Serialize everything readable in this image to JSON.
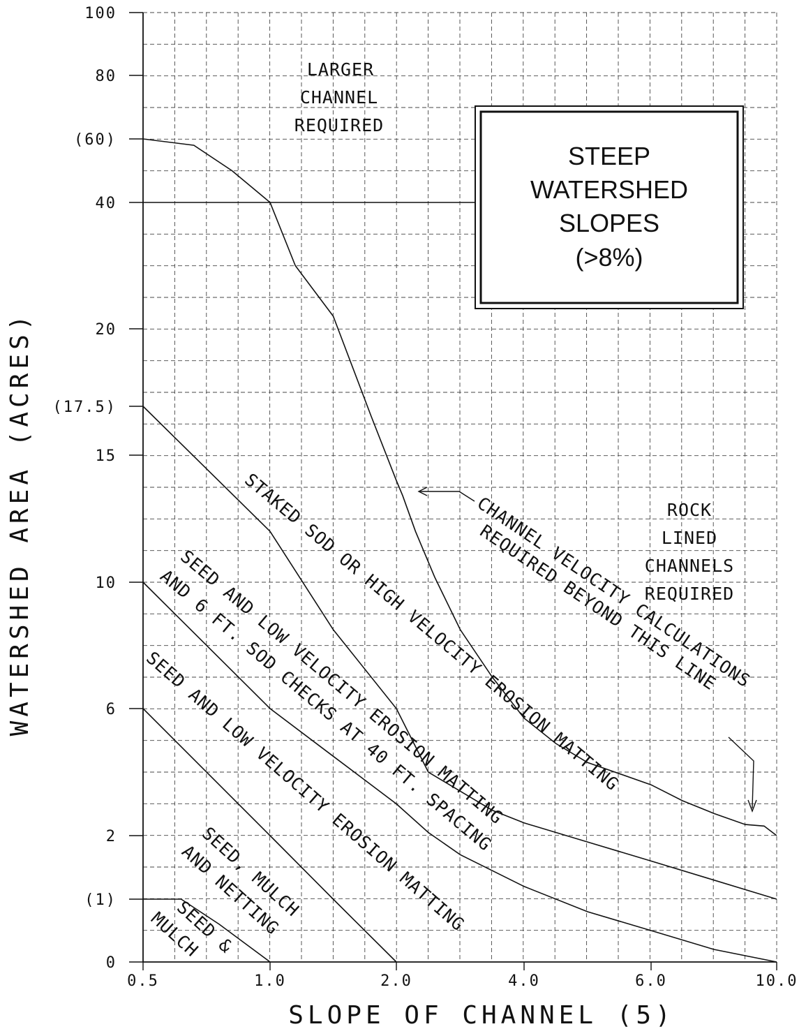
{
  "chart_data": {
    "type": "line",
    "title": "",
    "xlabel": "SLOPE OF CHANNEL (5)",
    "ylabel": "WATERSHED AREA (ACRES)",
    "xlim": [
      0.5,
      10.0
    ],
    "ylim": [
      0,
      100
    ],
    "grid": true,
    "x_ticks": [
      {
        "value": 0.5,
        "label": "0.5"
      },
      {
        "value": 1.0,
        "label": "1.0"
      },
      {
        "value": 2.0,
        "label": "2.0"
      },
      {
        "value": 4.0,
        "label": "4.0"
      },
      {
        "value": 6.0,
        "label": "6.0"
      },
      {
        "value": 10.0,
        "label": "10.0"
      }
    ],
    "y_ticks": [
      {
        "value": 0,
        "label": "0"
      },
      {
        "value": 1,
        "label": "(1)"
      },
      {
        "value": 2,
        "label": "2"
      },
      {
        "value": 6,
        "label": "6"
      },
      {
        "value": 10,
        "label": "10"
      },
      {
        "value": 15,
        "label": "15"
      },
      {
        "value": 17.5,
        "label": "(17.5)"
      },
      {
        "value": 20,
        "label": "20"
      },
      {
        "value": 40,
        "label": "40"
      },
      {
        "value": 60,
        "label": "(60)"
      },
      {
        "value": 80,
        "label": "80"
      },
      {
        "value": 100,
        "label": "100"
      }
    ],
    "info_box": [
      "STEEP",
      "WATERSHED",
      "SLOPES",
      "(>8%)"
    ],
    "series": [
      {
        "id": "seed-mulch-limit",
        "x": [
          0.5,
          0.65,
          0.8,
          0.9,
          1.0
        ],
        "y": [
          1,
          1,
          0.6,
          0.3,
          0
        ]
      },
      {
        "id": "seed-mulch-netting-limit",
        "x": [
          0.5,
          1.0,
          1.5,
          2.0
        ],
        "y": [
          6,
          2,
          1,
          0
        ]
      },
      {
        "id": "low-velocity-matting-limit",
        "x": [
          0.5,
          1.0,
          1.5,
          2.0,
          2.5,
          3.0,
          4.0,
          5.0,
          6.0,
          8.0,
          10.0
        ],
        "y": [
          10,
          6,
          4.5,
          3,
          2.1,
          1.7,
          1.2,
          0.8,
          0.5,
          0.2,
          0
        ]
      },
      {
        "id": "sod-checks-limit",
        "x": [
          0.5,
          1.0,
          1.5,
          2.0,
          2.5,
          3.0,
          3.5,
          4.0,
          5.0,
          6.0,
          8.0,
          10.0
        ],
        "y": [
          17.5,
          12,
          8.5,
          6,
          4,
          3.4,
          2.8,
          2.4,
          1.9,
          1.6,
          1.3,
          1.0
        ]
      },
      {
        "id": "channel-velocity-limit",
        "x": [
          0.5,
          0.7,
          0.85,
          1.0,
          1.2,
          1.5,
          1.8,
          2.0,
          2.1,
          2.3,
          2.6,
          3.0,
          3.5,
          4.0,
          4.5,
          5.0,
          6.0,
          7.0,
          8.0,
          9.0,
          9.6,
          10.0
        ],
        "y": [
          60,
          58,
          50,
          40,
          30,
          22,
          17,
          14,
          13.4,
          12,
          10.2,
          8.5,
          7.0,
          5.7,
          4.9,
          4.3,
          3.6,
          3.1,
          2.7,
          2.35,
          2.3,
          2.0
        ]
      }
    ],
    "reference_lines": [
      {
        "orientation": "horizontal",
        "y": 40,
        "x_from": 0.5,
        "x_to": 3.8
      }
    ],
    "annotations": [
      {
        "id": "larger-channel",
        "lines": [
          "LARGER",
          "CHANNEL",
          "REQUIRED"
        ]
      },
      {
        "id": "rock-lined",
        "lines": [
          "ROCK",
          "LINED",
          "CHANNELS",
          "REQUIRED"
        ]
      },
      {
        "id": "channel-velocity-note",
        "lines": [
          "CHANNEL VELOCITY CALCULATIONS",
          "REQUIRED BEYOND THIS LINE"
        ]
      },
      {
        "id": "staked-sod",
        "lines": [
          "STAKED SOD OR HIGH VELOCITY EROSION MATTING"
        ]
      },
      {
        "id": "sod-checks",
        "lines": [
          "SEED AND LOW VELOCITY EROSION MATTING",
          "AND 6 FT. SOD CHECKS AT 40 FT. SPACING"
        ]
      },
      {
        "id": "low-velocity",
        "lines": [
          "SEED AND LOW VELOCITY EROSION MATTING"
        ]
      },
      {
        "id": "seed-mulch-netting",
        "lines": [
          "SEED, MULCH",
          "AND NETTING"
        ]
      },
      {
        "id": "seed-mulch",
        "lines": [
          "SEED &",
          "MULCH"
        ]
      }
    ]
  }
}
